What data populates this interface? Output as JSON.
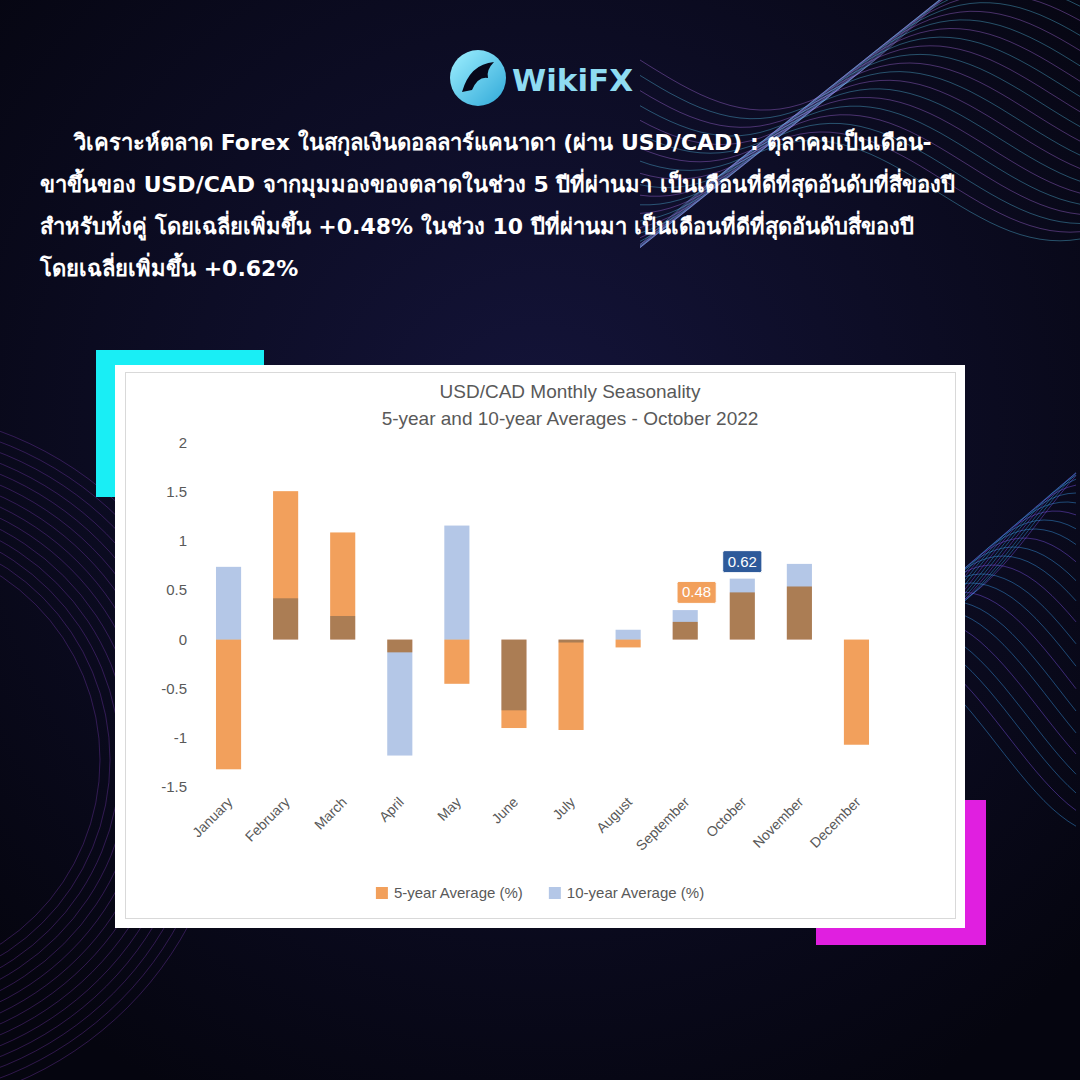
{
  "page": {
    "brand": "WikiFX",
    "text": [
      "วิเคราะห์ตลาด Forex ในสกุลเงินดอลลาร์แคนาดา (ผ่าน USD/CAD) : ตุลาคมเป็นเดือน-",
      "ขาขึ้นของ USD/CAD จากมุมมองของตลาดในช่วง 5 ปีที่ผ่านมา เป็นเดือนที่ดีที่สุดอันดับที่สี่ของปี",
      "สำหรับทั้งคู่ โดยเฉลี่ยเพิ่มขึ้น +0.48% ในช่วง 10 ปีที่ผ่านมา เป็นเดือนที่ดีที่สุดอันดับสี่ของปี",
      "โดยเฉลี่ยเพิ่มขึ้น +0.62%"
    ]
  },
  "chart_data": {
    "type": "bar",
    "title": "USD/CAD Monthly Seasonality",
    "subtitle": "5-year and 10-year Averages - October 2022",
    "categories": [
      "January",
      "February",
      "March",
      "April",
      "May",
      "June",
      "July",
      "August",
      "September",
      "October",
      "November",
      "December"
    ],
    "series": [
      {
        "name": "5-year Average (%)",
        "color": "#F2A05C",
        "values": [
          -1.32,
          1.51,
          1.09,
          -0.13,
          -0.45,
          -0.9,
          -0.92,
          -0.08,
          0.18,
          0.48,
          0.54,
          -1.07
        ],
        "value_labels": [
          null,
          null,
          null,
          null,
          null,
          null,
          null,
          null,
          null,
          "0.48",
          null,
          null
        ]
      },
      {
        "name": "10-year Average (%)",
        "color": "#B4C7E7",
        "values": [
          0.74,
          0.42,
          0.24,
          -1.18,
          1.16,
          -0.72,
          -0.03,
          0.1,
          0.3,
          0.62,
          0.77,
          0
        ],
        "value_labels": [
          null,
          null,
          null,
          null,
          null,
          null,
          null,
          null,
          null,
          "0.62",
          null,
          null
        ]
      }
    ],
    "ylim": [
      -1.5,
      2
    ],
    "yticks": [
      -1.5,
      -1,
      -0.5,
      0,
      0.5,
      1,
      1.5,
      2
    ],
    "grid": false,
    "legend": "bottom",
    "data_labels": true
  }
}
